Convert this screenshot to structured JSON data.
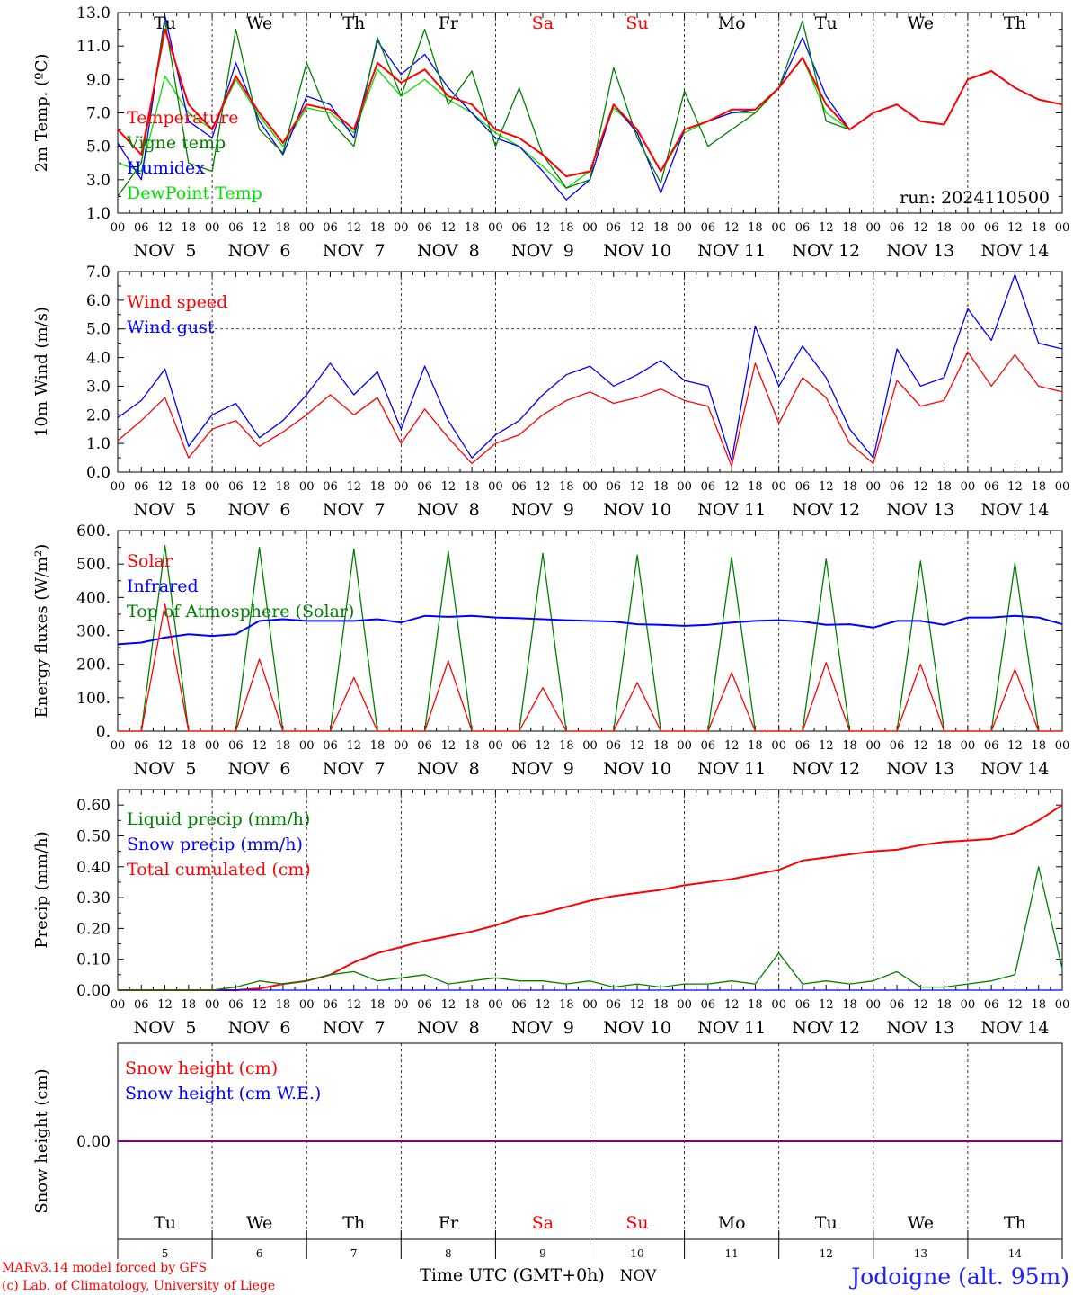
{
  "colors": {
    "red": "#ff0000",
    "green": "#00a000",
    "blue": "#0000ff",
    "lightgreen": "#00e000",
    "darkgreen": "#008000",
    "purple": "#800080",
    "axis": "#000000"
  },
  "time_axis": {
    "hour_ticks": [
      "00",
      "06",
      "12",
      "18"
    ],
    "last_tick": "00",
    "dates": [
      "NOV  5",
      "NOV  6",
      "NOV  7",
      "NOV  8",
      "NOV  9",
      "NOV 10",
      "NOV 11",
      "NOV 12",
      "NOV 13",
      "NOV 14"
    ],
    "weekdays": [
      "Tu",
      "We",
      "Th",
      "Fr",
      "Sa",
      "Su",
      "Mo",
      "Tu",
      "We",
      "Th"
    ],
    "weekend_days": [
      "Sa",
      "Su"
    ],
    "day_numbers": [
      "5",
      "6",
      "7",
      "8",
      "9",
      "10",
      "11",
      "12",
      "13",
      "14"
    ]
  },
  "footer": {
    "model_line": "MARv3.14 model forced by GFS",
    "credit_line": "(c) Lab. of Climatology, University of Liege",
    "xlabel": "Time UTC (GMT+0h)",
    "month": "NOV",
    "location": "Jodoigne (alt. 95m)"
  },
  "chart_data": [
    {
      "type": "line",
      "ylabel": "2m Temp. (ºC)",
      "ylim": [
        1,
        13
      ],
      "yticks": [
        "1.0",
        "3.0",
        "5.0",
        "7.0",
        "9.0",
        "11.0",
        "13.0"
      ],
      "ytick_values": [
        1,
        3,
        5,
        7,
        9,
        11,
        13
      ],
      "annotation": "run: 2024110500",
      "x_hours": [
        0,
        6,
        12,
        18,
        24,
        30,
        36,
        42,
        48,
        54,
        60,
        66,
        72,
        78,
        84,
        90,
        96,
        102,
        108,
        114,
        120,
        126,
        132,
        138,
        144,
        150,
        156,
        162,
        168,
        174,
        180,
        186,
        192,
        198,
        204,
        210,
        216,
        222,
        228,
        234,
        240
      ],
      "series": [
        {
          "name": "Temperature",
          "color": "#ff0000",
          "values": [
            6.0,
            4.5,
            12.0,
            7.5,
            6.0,
            9.2,
            7.0,
            5.2,
            7.5,
            7.2,
            6.0,
            10.0,
            8.8,
            9.6,
            8.0,
            7.5,
            6.0,
            5.5,
            4.5,
            3.2,
            3.5,
            7.5,
            6.0,
            3.5,
            6.0,
            6.5,
            7.2,
            7.2,
            8.5,
            10.3,
            7.5,
            6.0,
            7.0,
            7.5,
            6.5,
            6.3,
            9.0,
            9.5,
            8.5,
            7.8,
            7.5
          ]
        },
        {
          "name": "Vigne temp",
          "color": "#008000",
          "values": [
            2.0,
            4.0,
            12.5,
            4.0,
            3.5,
            12.0,
            6.0,
            4.6,
            10.0,
            6.5,
            5.0,
            11.5,
            8.0,
            12.0,
            7.5,
            9.5,
            5.0,
            8.5,
            4.5,
            2.5,
            3.0,
            9.7,
            5.5,
            2.8,
            8.3,
            5.0,
            6.0,
            7.0,
            8.5,
            12.5,
            6.5,
            6.0,
            7.0,
            7.5,
            6.5,
            6.3,
            9.0,
            9.5,
            8.5,
            7.8,
            7.5
          ]
        },
        {
          "name": "Humidex",
          "color": "#0000ff",
          "values": [
            5.2,
            3.0,
            12.8,
            6.5,
            5.5,
            10.0,
            6.5,
            4.5,
            8.0,
            7.5,
            5.5,
            11.3,
            9.3,
            10.5,
            8.5,
            7.0,
            5.5,
            5.0,
            3.5,
            1.8,
            3.0,
            7.5,
            5.8,
            2.2,
            6.0,
            6.5,
            7.0,
            7.2,
            8.5,
            11.5,
            8.0,
            6.0,
            7.0,
            7.5,
            6.5,
            6.3,
            9.0,
            9.5,
            8.5,
            7.8,
            7.5
          ]
        },
        {
          "name": "DewPoint Temp",
          "color": "#00e000",
          "values": [
            4.0,
            3.5,
            9.2,
            7.0,
            6.0,
            9.0,
            6.8,
            5.0,
            7.3,
            7.0,
            5.8,
            9.6,
            8.0,
            9.0,
            7.8,
            7.0,
            5.8,
            5.0,
            3.8,
            2.5,
            3.5,
            7.3,
            6.0,
            3.5,
            5.8,
            6.5,
            7.0,
            7.0,
            8.5,
            10.3,
            7.0,
            6.0,
            7.0,
            7.5,
            6.5,
            6.3,
            9.0,
            9.5,
            8.5,
            7.8,
            7.5
          ]
        }
      ]
    },
    {
      "type": "line",
      "ylabel": "10m Wind (m/s)",
      "ylim": [
        0,
        7
      ],
      "yticks": [
        "0.0",
        "1.0",
        "2.0",
        "3.0",
        "4.0",
        "5.0",
        "6.0",
        "7.0"
      ],
      "ytick_values": [
        0,
        1,
        2,
        3,
        4,
        5,
        6,
        7
      ],
      "reference_line": 5,
      "x_hours": [
        0,
        6,
        12,
        18,
        24,
        30,
        36,
        42,
        48,
        54,
        60,
        66,
        72,
        78,
        84,
        90,
        96,
        102,
        108,
        114,
        120,
        126,
        132,
        138,
        144,
        150,
        156,
        162,
        168,
        174,
        180,
        186,
        192,
        198,
        204,
        210,
        216,
        222,
        228,
        234,
        240
      ],
      "series": [
        {
          "name": "Wind speed",
          "color": "#ff0000",
          "values": [
            1.1,
            1.8,
            2.6,
            0.5,
            1.5,
            1.8,
            0.9,
            1.4,
            2.0,
            2.7,
            2.0,
            2.6,
            1.0,
            2.2,
            1.2,
            0.3,
            1.0,
            1.3,
            2.0,
            2.5,
            2.8,
            2.4,
            2.6,
            2.9,
            2.5,
            2.3,
            0.2,
            3.8,
            1.7,
            3.3,
            2.6,
            1.0,
            0.3,
            3.2,
            2.3,
            2.5,
            4.2,
            3.0,
            4.1,
            3.0,
            2.8
          ]
        },
        {
          "name": "Wind gust",
          "color": "#0000ff",
          "values": [
            1.9,
            2.5,
            3.6,
            0.9,
            2.0,
            2.4,
            1.2,
            1.8,
            2.7,
            3.8,
            2.7,
            3.5,
            1.5,
            3.7,
            1.8,
            0.5,
            1.3,
            1.8,
            2.7,
            3.4,
            3.7,
            3.0,
            3.4,
            3.9,
            3.2,
            3.0,
            0.4,
            5.1,
            3.0,
            4.4,
            3.3,
            1.5,
            0.5,
            4.3,
            3.0,
            3.3,
            5.7,
            4.6,
            6.9,
            4.5,
            4.3
          ]
        }
      ]
    },
    {
      "type": "line",
      "ylabel": "Energy fluxes (W/m²)",
      "ylim": [
        0,
        600
      ],
      "yticks": [
        "0.",
        "100.",
        "200.",
        "300.",
        "400.",
        "500.",
        "600."
      ],
      "ytick_values": [
        0,
        100,
        200,
        300,
        400,
        500,
        600
      ],
      "x_hours": [
        0,
        6,
        12,
        18,
        24,
        30,
        36,
        42,
        48,
        54,
        60,
        66,
        72,
        78,
        84,
        90,
        96,
        102,
        108,
        114,
        120,
        126,
        132,
        138,
        144,
        150,
        156,
        162,
        168,
        174,
        180,
        186,
        192,
        198,
        204,
        210,
        216,
        222,
        228,
        234,
        240
      ],
      "series": [
        {
          "name": "Solar",
          "color": "#ff0000",
          "values": [
            0,
            0,
            380,
            0,
            0,
            0,
            215,
            0,
            0,
            0,
            160,
            0,
            0,
            0,
            210,
            0,
            0,
            0,
            130,
            0,
            0,
            0,
            145,
            0,
            0,
            0,
            175,
            0,
            0,
            0,
            205,
            0,
            0,
            0,
            200,
            0,
            0,
            0,
            185,
            0,
            0
          ]
        },
        {
          "name": "Infrared",
          "color": "#0000ff",
          "values": [
            260,
            265,
            280,
            290,
            285,
            290,
            330,
            335,
            330,
            330,
            330,
            335,
            325,
            345,
            342,
            345,
            340,
            338,
            335,
            332,
            330,
            328,
            320,
            318,
            315,
            318,
            325,
            330,
            332,
            328,
            318,
            320,
            310,
            330,
            330,
            318,
            340,
            340,
            345,
            340,
            320
          ]
        },
        {
          "name": "Top of Atmosphere (Solar)",
          "color": "#008000",
          "values": [
            0,
            0,
            555,
            0,
            0,
            0,
            550,
            0,
            0,
            0,
            545,
            0,
            0,
            0,
            538,
            0,
            0,
            0,
            532,
            0,
            0,
            0,
            527,
            0,
            0,
            0,
            521,
            0,
            0,
            0,
            515,
            0,
            0,
            0,
            509,
            0,
            0,
            0,
            503,
            0,
            0
          ]
        }
      ]
    },
    {
      "type": "line",
      "ylabel": "Precip (mm/h)",
      "ylim": [
        0,
        0.65
      ],
      "yticks": [
        "0.00",
        "0.10",
        "0.20",
        "0.30",
        "0.40",
        "0.50",
        "0.60"
      ],
      "ytick_values": [
        0,
        0.1,
        0.2,
        0.3,
        0.4,
        0.5,
        0.6
      ],
      "x_hours": [
        0,
        6,
        12,
        18,
        24,
        30,
        36,
        42,
        48,
        54,
        60,
        66,
        72,
        78,
        84,
        90,
        96,
        102,
        108,
        114,
        120,
        126,
        132,
        138,
        144,
        150,
        156,
        162,
        168,
        174,
        180,
        186,
        192,
        198,
        204,
        210,
        216,
        222,
        228,
        234,
        240
      ],
      "series": [
        {
          "name": "Liquid precip (mm/h)",
          "color": "#008000",
          "values": [
            0,
            0,
            0,
            0,
            0,
            0.01,
            0.03,
            0.02,
            0.03,
            0.05,
            0.06,
            0.03,
            0.04,
            0.05,
            0.02,
            0.03,
            0.04,
            0.03,
            0.03,
            0.02,
            0.03,
            0.01,
            0.02,
            0.01,
            0.02,
            0.02,
            0.03,
            0.02,
            0.12,
            0.02,
            0.03,
            0.02,
            0.03,
            0.06,
            0.01,
            0.01,
            0.02,
            0.03,
            0.05,
            0.4,
            0.07
          ]
        },
        {
          "name": "Snow precip (mm/h)",
          "color": "#0000ff",
          "values": [
            0,
            0,
            0,
            0,
            0,
            0,
            0,
            0,
            0,
            0,
            0,
            0,
            0,
            0,
            0,
            0,
            0,
            0,
            0,
            0,
            0,
            0,
            0,
            0,
            0,
            0,
            0,
            0,
            0,
            0,
            0,
            0,
            0,
            0,
            0,
            0,
            0,
            0,
            0,
            0,
            0
          ]
        },
        {
          "name": "Total cumulated (cm)",
          "color": "#ff0000",
          "values": [
            0,
            0,
            0,
            0,
            0,
            0,
            0.005,
            0.02,
            0.03,
            0.05,
            0.09,
            0.12,
            0.14,
            0.16,
            0.175,
            0.19,
            0.21,
            0.235,
            0.25,
            0.27,
            0.29,
            0.305,
            0.315,
            0.325,
            0.34,
            0.35,
            0.36,
            0.375,
            0.39,
            0.42,
            0.43,
            0.44,
            0.45,
            0.455,
            0.47,
            0.48,
            0.485,
            0.49,
            0.51,
            0.55,
            0.6
          ]
        }
      ]
    },
    {
      "type": "line",
      "ylabel": "Snow height (cm)",
      "ylim": [
        -1,
        1
      ],
      "yticks": [
        "0.00"
      ],
      "ytick_values": [
        0
      ],
      "x_hours": [
        0,
        240
      ],
      "series": [
        {
          "name": "Snow height (cm)",
          "color": "#ff0000",
          "values": [
            0,
            0
          ]
        },
        {
          "name": "Snow height (cm W.E.)",
          "color": "#0000ff",
          "values": [
            0,
            0
          ]
        }
      ]
    }
  ]
}
